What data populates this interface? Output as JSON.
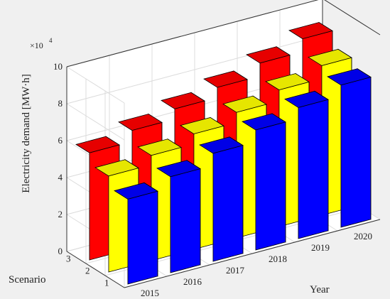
{
  "chart_data": {
    "type": "bar3d",
    "ylabel": "Electricity demand [MW·h]",
    "xlabel": "Year",
    "zlabel": "Scenario",
    "exponent_base": "×10",
    "exponent_power": "4",
    "ylim": [
      0,
      10
    ],
    "yticks": [
      "0",
      "2",
      "4",
      "6",
      "8",
      "10"
    ],
    "years": [
      "2015",
      "2016",
      "2017",
      "2018",
      "2019",
      "2020"
    ],
    "scenarios": [
      "1",
      "2",
      "3"
    ],
    "series": [
      {
        "scenario": "1",
        "color": "#0000ff",
        "values": [
          4.6,
          5.2,
          5.85,
          6.5,
          7.1,
          7.7
        ]
      },
      {
        "scenario": "2",
        "color": "#ffff00",
        "values": [
          5.2,
          5.7,
          6.25,
          6.8,
          7.4,
          8.1
        ]
      },
      {
        "scenario": "3",
        "color": "#ff0000",
        "values": [
          5.8,
          6.4,
          6.95,
          7.5,
          8.2,
          8.9
        ]
      }
    ],
    "grid": true
  }
}
